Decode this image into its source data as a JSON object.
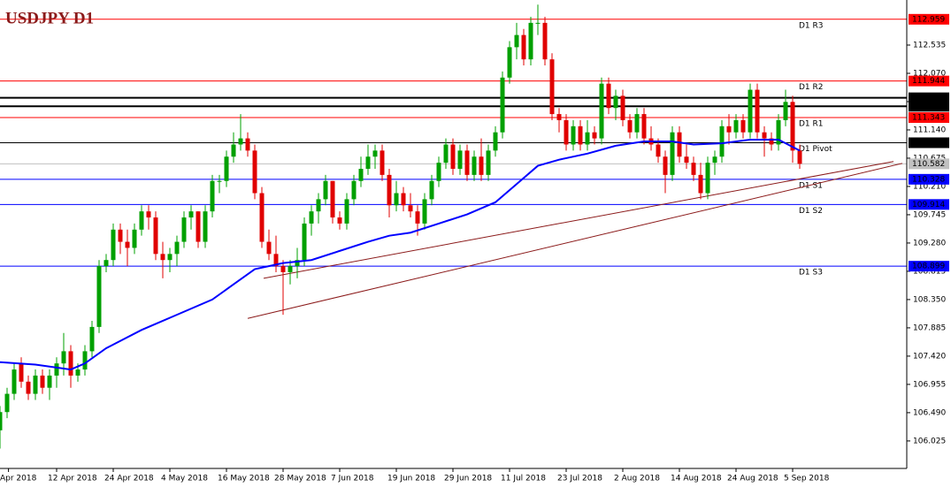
{
  "chart_data": {
    "type": "candlestick",
    "title": "USDJPY D1",
    "up_color": "#00a000",
    "down_color": "#e00000",
    "open": [
      106.2,
      106.5,
      106.8,
      107.3,
      107.0,
      106.8,
      107.1,
      106.9,
      107.1,
      107.3,
      107.5,
      107.1,
      107.2,
      107.5,
      107.9,
      108.9,
      109.0,
      109.5,
      109.3,
      109.2,
      109.5,
      109.8,
      109.7,
      109.1,
      109.0,
      109.1,
      109.3,
      109.7,
      109.8,
      109.3,
      109.8,
      110.3,
      110.3,
      110.7,
      110.9,
      111.0,
      110.8,
      110.1,
      109.3,
      109.1,
      108.9,
      108.8,
      108.9,
      109.0,
      109.6,
      109.8,
      110.0,
      110.3,
      109.7,
      109.6,
      110.0,
      110.3,
      110.5,
      110.7,
      110.8,
      110.4,
      109.9,
      110.1,
      109.9,
      109.8,
      109.6,
      110.0,
      110.3,
      110.6,
      110.9,
      110.5,
      110.8,
      110.4,
      110.7,
      110.4,
      110.8,
      111.1,
      112.0,
      112.5,
      112.7,
      112.3,
      112.9,
      112.9,
      112.3,
      111.4,
      111.3,
      110.9,
      111.2,
      110.9,
      111.1,
      111.0,
      111.9,
      111.5,
      111.7,
      111.3,
      111.1,
      111.4,
      111.0,
      110.9,
      110.7,
      110.4,
      111.1,
      110.7,
      110.6,
      110.4,
      110.1,
      110.6,
      110.7,
      111.2,
      111.1,
      111.3,
      111.1,
      111.8,
      111.1,
      111.0,
      110.9,
      111.3,
      111.6,
      110.8
    ],
    "high": [
      106.6,
      106.9,
      107.3,
      107.4,
      107.1,
      107.2,
      107.2,
      107.2,
      107.4,
      107.8,
      107.6,
      107.3,
      107.6,
      108.0,
      109.0,
      109.1,
      109.6,
      109.6,
      109.5,
      109.6,
      109.9,
      109.9,
      109.8,
      109.3,
      109.2,
      109.4,
      109.8,
      109.9,
      109.8,
      109.9,
      110.4,
      110.4,
      110.8,
      111.1,
      111.4,
      111.1,
      110.9,
      110.2,
      109.5,
      109.4,
      109.0,
      109.0,
      109.2,
      109.7,
      109.9,
      110.1,
      110.4,
      110.3,
      109.8,
      110.1,
      110.4,
      110.7,
      110.9,
      110.9,
      110.9,
      110.5,
      110.3,
      110.2,
      110.1,
      109.9,
      110.1,
      110.4,
      110.7,
      111.0,
      111.0,
      110.9,
      110.9,
      110.8,
      111.0,
      110.9,
      111.2,
      112.1,
      112.6,
      112.9,
      112.8,
      113.0,
      113.2,
      113.0,
      112.4,
      111.5,
      111.4,
      111.3,
      111.3,
      111.3,
      111.2,
      112.0,
      112.0,
      111.8,
      111.8,
      111.4,
      111.5,
      111.5,
      111.2,
      111.0,
      110.8,
      111.2,
      111.2,
      110.9,
      110.7,
      110.6,
      110.7,
      110.8,
      111.3,
      111.4,
      111.4,
      111.4,
      111.9,
      111.9,
      111.2,
      111.1,
      111.4,
      111.8,
      111.7,
      110.9
    ],
    "low": [
      105.9,
      106.4,
      106.7,
      106.9,
      106.7,
      106.7,
      106.8,
      106.7,
      106.9,
      107.1,
      106.9,
      107.0,
      107.1,
      107.4,
      107.8,
      108.8,
      108.9,
      109.1,
      108.9,
      109.1,
      109.4,
      109.5,
      109.0,
      108.7,
      108.8,
      108.9,
      109.2,
      109.5,
      109.2,
      109.2,
      109.7,
      110.1,
      110.2,
      110.6,
      110.8,
      110.7,
      110.0,
      109.2,
      109.0,
      108.8,
      108.1,
      108.6,
      108.7,
      108.9,
      109.4,
      109.6,
      109.9,
      109.6,
      109.5,
      109.5,
      109.9,
      110.2,
      110.4,
      110.5,
      110.3,
      109.7,
      109.8,
      109.8,
      109.7,
      109.4,
      109.5,
      109.9,
      110.2,
      110.5,
      110.4,
      110.4,
      110.3,
      110.3,
      110.3,
      110.3,
      110.7,
      111.0,
      111.9,
      112.3,
      112.2,
      112.2,
      112.7,
      112.2,
      111.3,
      111.1,
      110.8,
      110.8,
      110.8,
      110.8,
      110.9,
      110.9,
      111.4,
      111.3,
      111.2,
      111.0,
      111.0,
      110.9,
      110.8,
      110.6,
      110.1,
      110.3,
      110.6,
      110.5,
      110.3,
      110.0,
      110.0,
      110.4,
      110.6,
      110.9,
      111.0,
      111.0,
      111.0,
      111.0,
      110.7,
      110.8,
      110.8,
      111.2,
      110.6,
      110.5
    ],
    "close": [
      106.5,
      106.8,
      107.2,
      107.0,
      106.8,
      107.1,
      106.9,
      107.1,
      107.3,
      107.5,
      107.1,
      107.2,
      107.5,
      107.9,
      108.9,
      109.0,
      109.5,
      109.3,
      109.2,
      109.5,
      109.8,
      109.7,
      109.1,
      109.0,
      109.1,
      109.3,
      109.7,
      109.8,
      109.3,
      109.8,
      110.3,
      110.3,
      110.7,
      110.9,
      111.0,
      110.8,
      110.1,
      109.3,
      109.1,
      108.9,
      108.8,
      108.9,
      109.0,
      109.6,
      109.8,
      110.0,
      110.3,
      109.7,
      109.6,
      110.0,
      110.3,
      110.5,
      110.7,
      110.8,
      110.4,
      109.9,
      110.1,
      109.9,
      109.8,
      109.6,
      110.0,
      110.3,
      110.6,
      110.9,
      110.5,
      110.8,
      110.4,
      110.7,
      110.4,
      110.8,
      111.1,
      112.0,
      112.5,
      112.7,
      112.3,
      112.9,
      112.9,
      112.3,
      111.4,
      111.3,
      110.9,
      111.2,
      110.9,
      111.1,
      111.0,
      111.9,
      111.5,
      111.7,
      111.3,
      111.1,
      111.4,
      111.0,
      110.9,
      110.7,
      110.4,
      111.1,
      110.7,
      110.6,
      110.4,
      110.1,
      110.6,
      110.7,
      111.2,
      111.1,
      111.3,
      111.1,
      111.8,
      111.1,
      111.0,
      110.9,
      111.3,
      111.6,
      110.8,
      110.582
    ],
    "ma": {
      "color": "#0000ff",
      "x": [
        0,
        5,
        10,
        12,
        15,
        20,
        22,
        25,
        30,
        33,
        36,
        40,
        44,
        48,
        52,
        55,
        58,
        62,
        66,
        70,
        73,
        76,
        79,
        83,
        87,
        91,
        95,
        98,
        102,
        106,
        110,
        113
      ],
      "values": [
        107.32,
        107.28,
        107.2,
        107.3,
        107.55,
        107.85,
        107.95,
        108.1,
        108.35,
        108.6,
        108.85,
        108.95,
        109.0,
        109.15,
        109.3,
        109.4,
        109.45,
        109.6,
        109.75,
        109.95,
        110.25,
        110.55,
        110.65,
        110.75,
        110.88,
        110.95,
        110.95,
        110.9,
        110.92,
        110.98,
        110.98,
        110.8
      ]
    },
    "trendlines": {
      "color": "#8b1a1a",
      "lines": [
        {
          "x": [
            35,
            127.5
          ],
          "y": [
            108.04,
            110.59
          ]
        },
        {
          "x": [
            37.25,
            126.25
          ],
          "y": [
            108.7,
            110.62
          ]
        }
      ]
    },
    "levels": [
      {
        "value": 112.959,
        "label": "D1 R3",
        "color": "#ff0000"
      },
      {
        "value": 111.944,
        "label": "D1 R2",
        "color": "#ff0000"
      },
      {
        "value": 111.668,
        "color": "#000000"
      },
      {
        "value": 111.528,
        "color": "#000000"
      },
      {
        "value": 111.343,
        "label": "D1 R1",
        "color": "#ff0000"
      },
      {
        "value": 110.929,
        "label": "D1 Pivot",
        "color": "#000000"
      },
      {
        "value": 110.582,
        "color": "#c0c0c0"
      },
      {
        "value": 110.328,
        "label": "D1 S1",
        "color": "#0000ff"
      },
      {
        "value": 109.914,
        "label": "D1 S2",
        "color": "#0000ff"
      },
      {
        "value": 108.899,
        "label": "D1 S3",
        "color": "#0000ff"
      }
    ],
    "ylim": [
      105.573,
      113.276
    ],
    "yticks": [
      112.535,
      {
        "value": 112.07,
        "label": "112.070"
      },
      111.605,
      {
        "value": 111.14,
        "label": "111.140"
      },
      110.675,
      {
        "value": 110.21,
        "label": "110.210"
      },
      109.745,
      {
        "value": 109.28,
        "label": "109.280"
      },
      108.815,
      {
        "value": 108.35,
        "label": "108.350"
      },
      107.885,
      {
        "value": 107.42,
        "label": "107.420"
      },
      106.955,
      {
        "value": 106.49,
        "label": "106.490"
      },
      106.025
    ],
    "xticks": [
      {
        "value": 1.2,
        "label": "Apr 2018"
      },
      {
        "value": 8,
        "label": "12 Apr 2018"
      },
      {
        "value": 16,
        "label": "24 Apr 2018"
      },
      {
        "value": 24,
        "label": "4 May 2018"
      },
      {
        "value": 32,
        "label": "16 May 2018"
      },
      {
        "value": 40,
        "label": "28 May 2018"
      },
      {
        "value": 48,
        "label": "7 Jun 2018"
      },
      {
        "value": 56,
        "label": "19 Jun 2018"
      },
      {
        "value": 64,
        "label": "29 Jun 2018"
      },
      {
        "value": 72,
        "label": "11 Jul 2018"
      },
      {
        "value": 80,
        "label": "23 Jul 2018"
      },
      {
        "value": 88,
        "label": "2 Aug 2018"
      },
      {
        "value": 96,
        "label": "14 Aug 2018"
      },
      {
        "value": 104,
        "label": "24 Aug 2018"
      },
      {
        "value": 112,
        "label": "5 Sep 2018"
      }
    ]
  }
}
